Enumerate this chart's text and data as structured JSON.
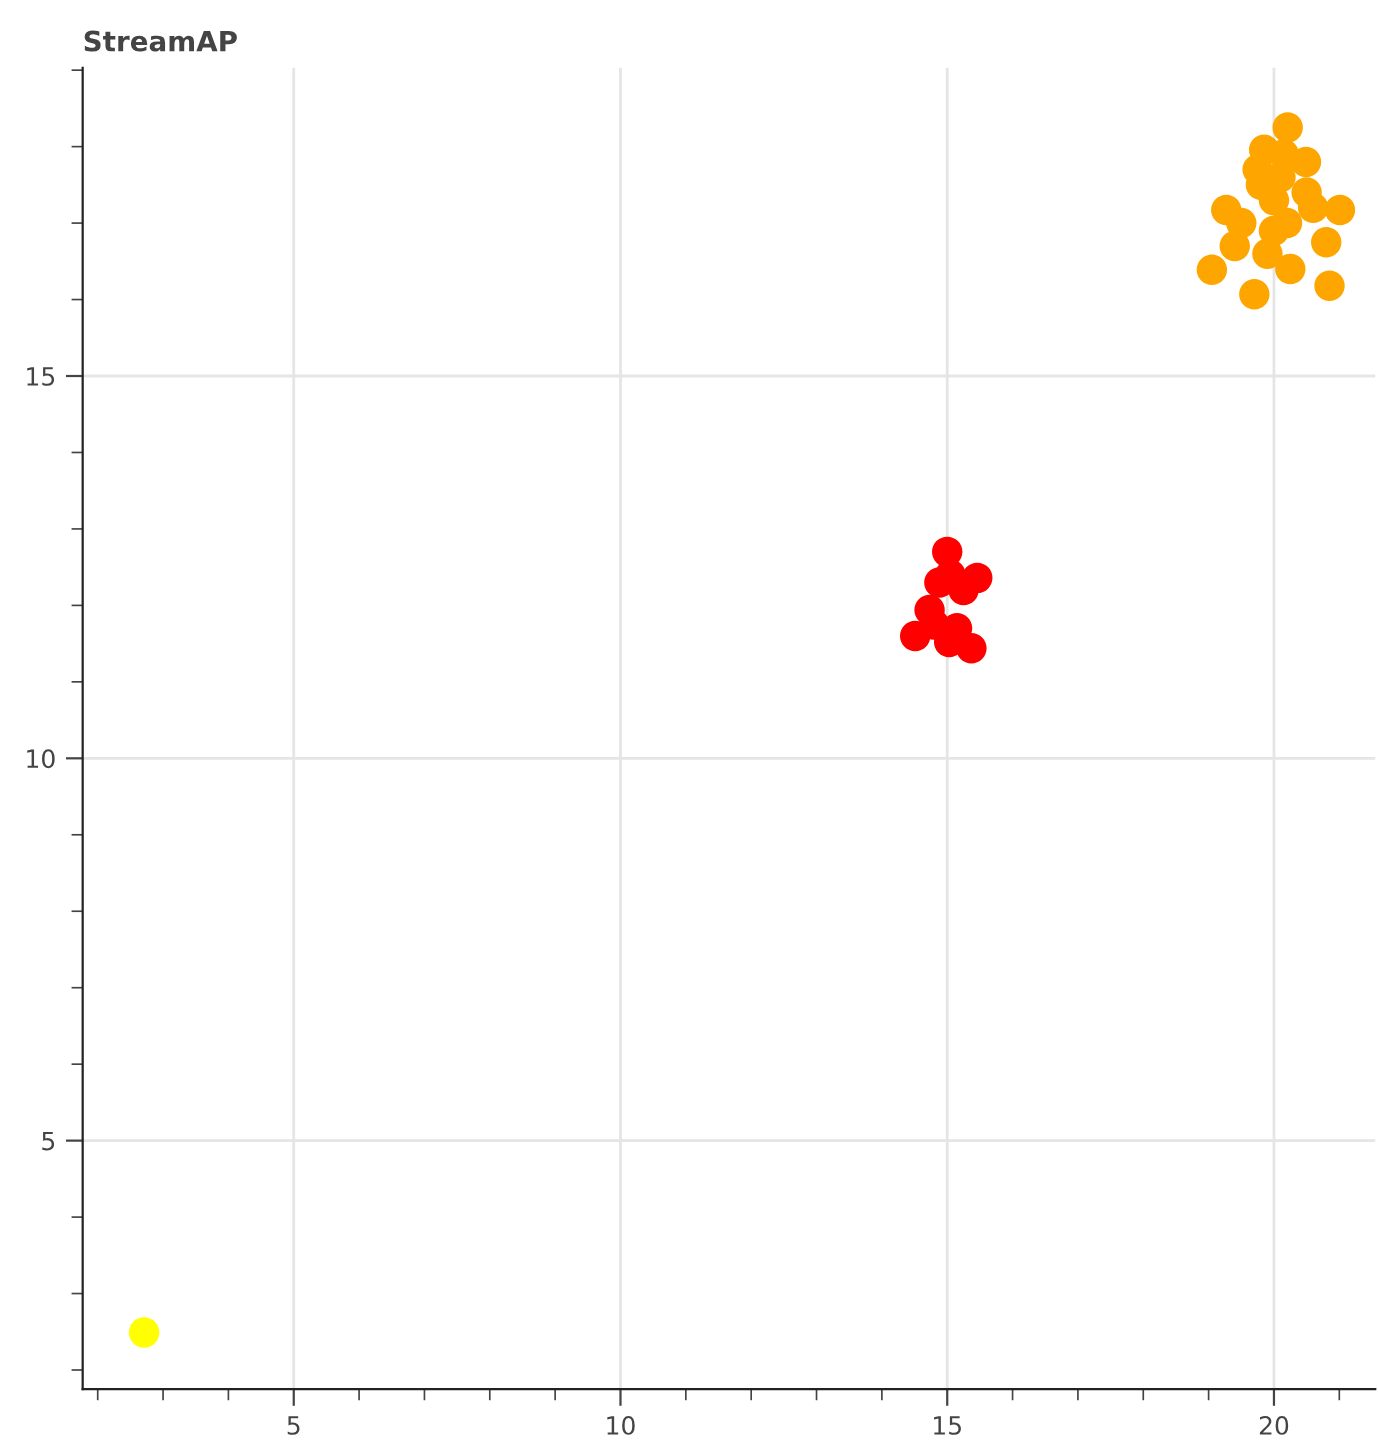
{
  "chart_data": {
    "type": "scatter",
    "title": "StreamAP",
    "series": [
      {
        "color": "#ffff00",
        "x": [
          2.71
        ],
        "values": [
          2.49
        ]
      },
      {
        "color": "#ff0000",
        "x": [
          15.0,
          14.51,
          15.37,
          15.46,
          14.73,
          15.03,
          14.88,
          14.8,
          15.05,
          15.15,
          15.25
        ],
        "values": [
          12.7,
          11.6,
          11.44,
          12.36,
          11.94,
          11.52,
          12.3,
          11.75,
          12.4,
          11.7,
          12.2
        ]
      },
      {
        "color": "#ffa500",
        "x": [
          20.21,
          19.05,
          19.7,
          21.01,
          20.85,
          19.27,
          19.85,
          20.49,
          20.8,
          20.0,
          20.2,
          19.9,
          20.1,
          19.5,
          20.6,
          19.8,
          20.0,
          20.5,
          19.4,
          20.15,
          19.75,
          20.25
        ],
        "values": [
          18.25,
          16.39,
          16.07,
          17.17,
          16.18,
          17.17,
          17.96,
          17.8,
          16.75,
          17.3,
          17.0,
          16.6,
          17.6,
          17.0,
          17.2,
          17.5,
          16.9,
          17.4,
          16.7,
          17.9,
          17.7,
          16.4
        ]
      }
    ],
    "xlim": [
      1.77,
      21.55
    ],
    "ylim": [
      1.75,
      19.03
    ],
    "xticks": [
      5,
      10,
      15,
      20
    ],
    "yticks": [
      5,
      10,
      15
    ],
    "grid": true,
    "marker": "circle"
  }
}
